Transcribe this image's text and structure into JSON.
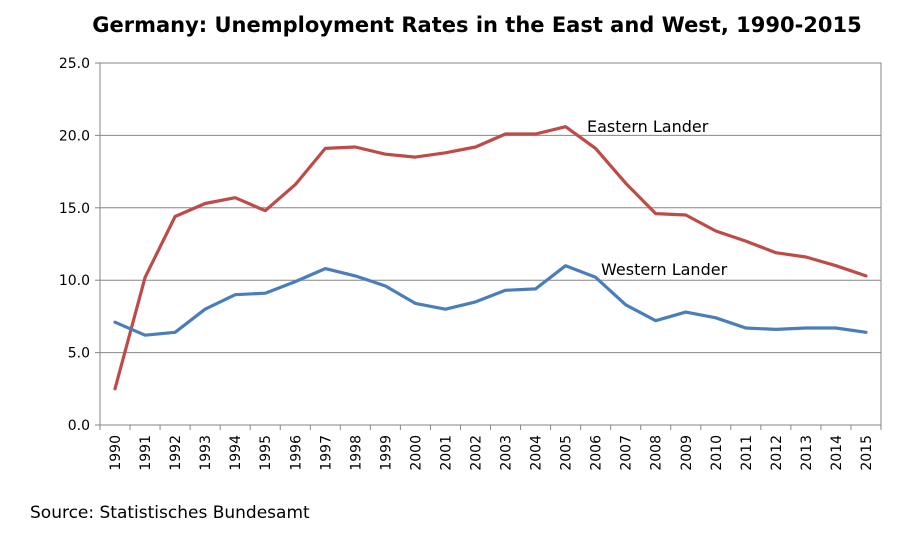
{
  "chart_data": {
    "type": "line",
    "title": "Germany: Unemployment Rates in the East and West, 1990-2015",
    "xlabel": "",
    "ylabel": "",
    "ylim": [
      0,
      25
    ],
    "yticks": [
      "0.0",
      "5.0",
      "10.0",
      "15.0",
      "20.0",
      "25.0"
    ],
    "grid": true,
    "categories": [
      "1990",
      "1991",
      "1992",
      "1993",
      "1994",
      "1995",
      "1996",
      "1997",
      "1998",
      "1999",
      "2000",
      "2001",
      "2002",
      "2003",
      "2004",
      "2005",
      "2006",
      "2007",
      "2008",
      "2009",
      "2010",
      "2011",
      "2012",
      "2013",
      "2014",
      "2015"
    ],
    "series": [
      {
        "name": "Eastern Lander",
        "color": "#be4b48",
        "values": [
          2.5,
          10.2,
          14.4,
          15.3,
          15.7,
          14.8,
          16.6,
          19.1,
          19.2,
          18.7,
          18.5,
          18.8,
          19.2,
          20.1,
          20.1,
          20.6,
          19.1,
          16.7,
          14.6,
          14.5,
          13.4,
          12.7,
          11.9,
          11.6,
          11.0,
          10.3
        ]
      },
      {
        "name": "Western Lander",
        "color": "#4a7ebb",
        "values": [
          7.1,
          6.2,
          6.4,
          8.0,
          9.0,
          9.1,
          9.9,
          10.8,
          10.3,
          9.6,
          8.4,
          8.0,
          8.5,
          9.3,
          9.4,
          11.0,
          10.2,
          8.3,
          7.2,
          7.8,
          7.4,
          6.7,
          6.6,
          6.7,
          6.7,
          6.4
        ]
      }
    ],
    "source": "Source: Statistisches Bundesamt"
  }
}
